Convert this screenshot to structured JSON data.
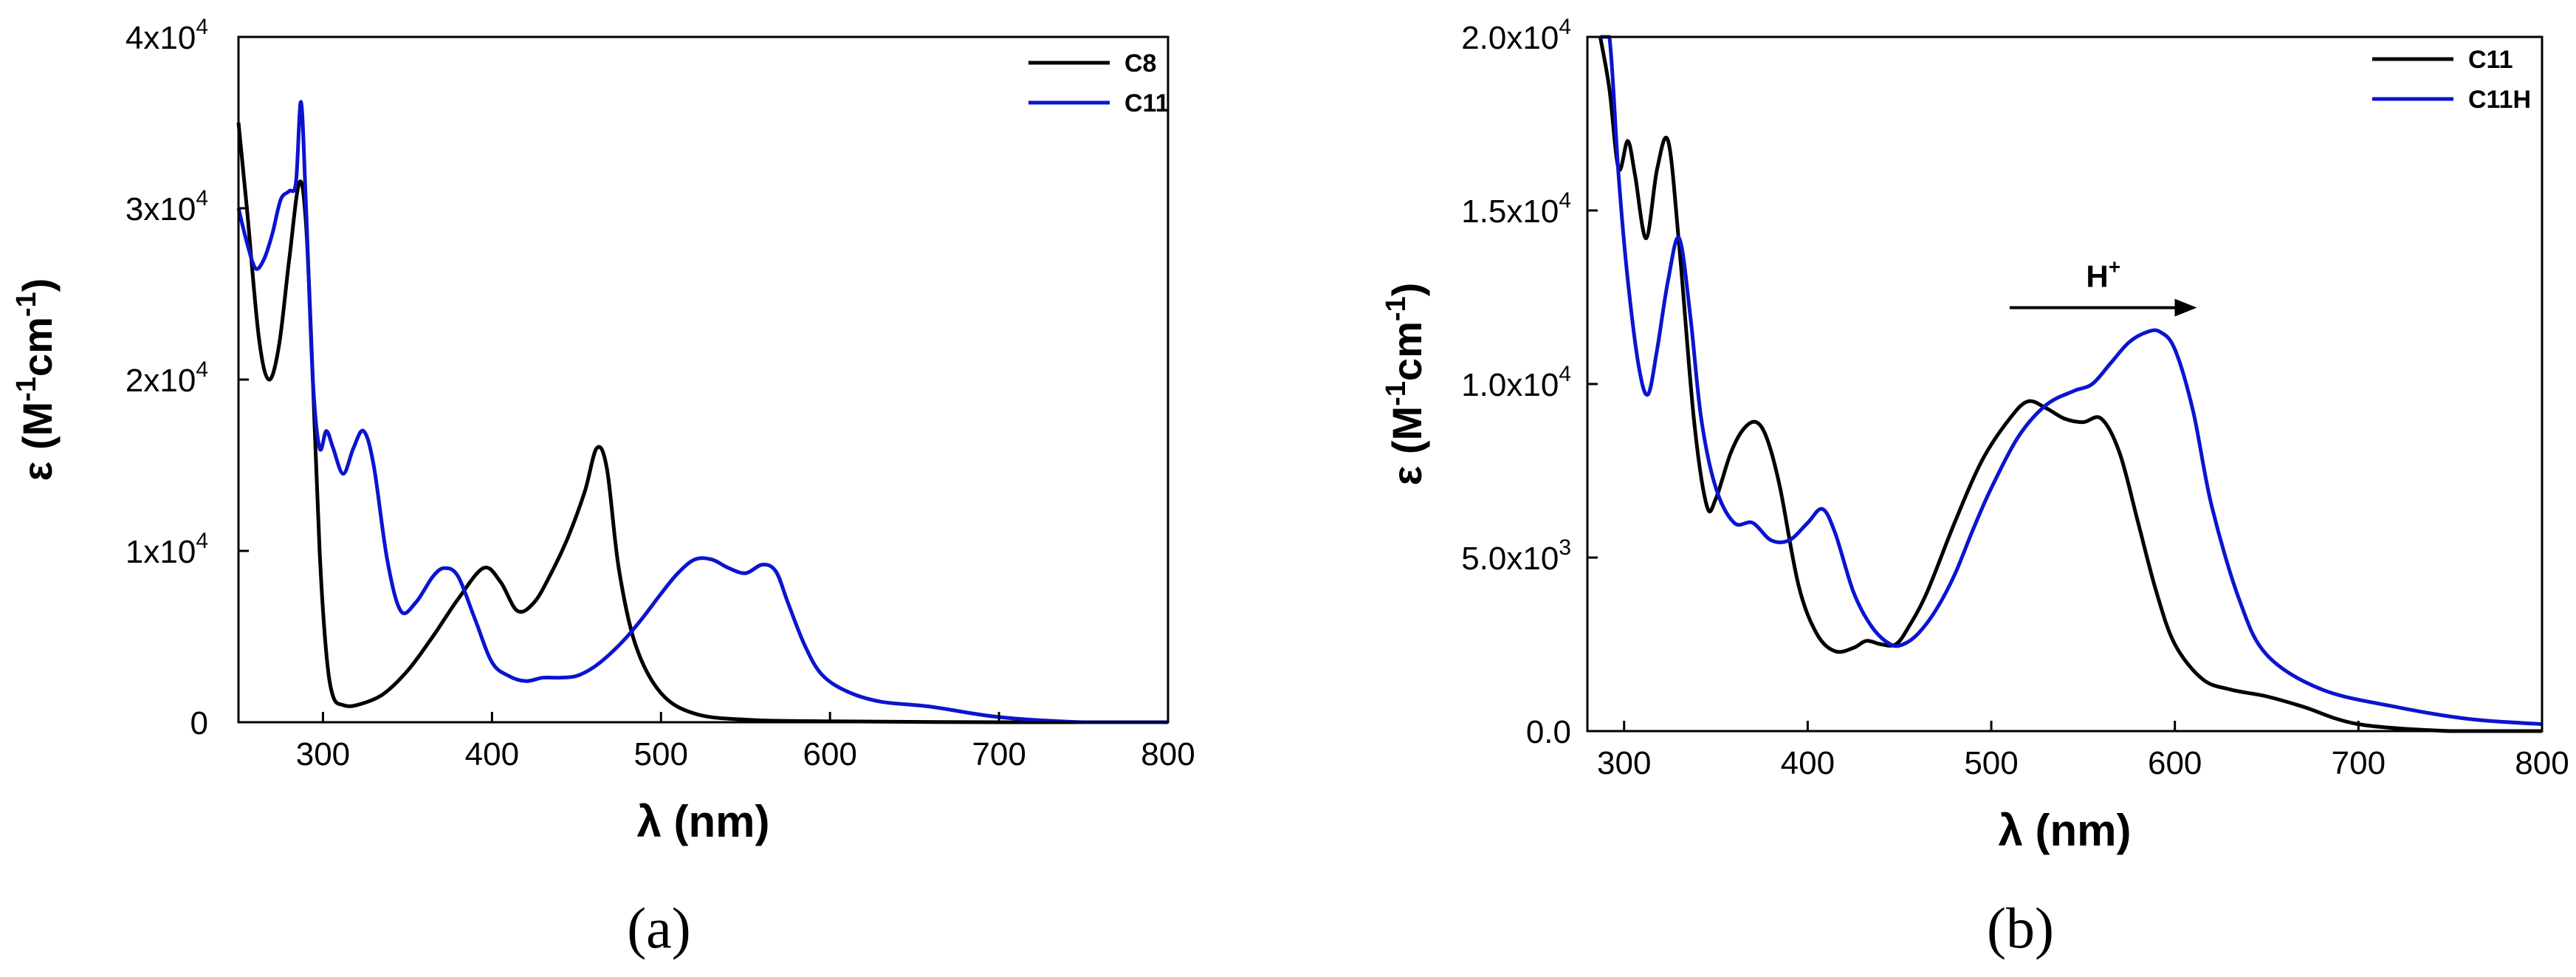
{
  "chart_data": [
    {
      "type": "line",
      "panel_label": "(a)",
      "xlabel": "λ (nm)",
      "ylabel": "ε (M⁻¹cm⁻¹)",
      "xlim": [
        250,
        800
      ],
      "ylim": [
        0,
        40000
      ],
      "x_ticks": [
        300,
        400,
        500,
        600,
        700,
        800
      ],
      "x_tick_labels": [
        "300",
        "400",
        "500",
        "600",
        "700",
        "800"
      ],
      "y_ticks": [
        0,
        10000,
        20000,
        30000,
        40000
      ],
      "y_tick_labels": [
        {
          "base": "0",
          "exp": ""
        },
        {
          "base": "1x10",
          "exp": "4"
        },
        {
          "base": "2x10",
          "exp": "4"
        },
        {
          "base": "3x10",
          "exp": "4"
        },
        {
          "base": "4x10",
          "exp": "4"
        }
      ],
      "legend_position": "top-right",
      "series": [
        {
          "name": "C8",
          "color": "#000000",
          "x": [
            250,
            255,
            262,
            268,
            274,
            280,
            286,
            290,
            294,
            298,
            302,
            306,
            312,
            320,
            335,
            350,
            365,
            380,
            395,
            405,
            415,
            425,
            435,
            445,
            455,
            462,
            468,
            475,
            485,
            500,
            520,
            550,
            600,
            700,
            800
          ],
          "y": [
            35000,
            30000,
            22500,
            20000,
            22000,
            27000,
            31500,
            29000,
            20000,
            10000,
            4000,
            1500,
            1000,
            1000,
            1600,
            3000,
            5000,
            7200,
            9000,
            8200,
            6500,
            7000,
            8700,
            10800,
            13500,
            16000,
            14800,
            9000,
            4500,
            1700,
            500,
            150,
            50,
            0,
            0
          ]
        },
        {
          "name": "C11",
          "color": "#0b14ce",
          "x": [
            250,
            255,
            260,
            265,
            270,
            275,
            280,
            284,
            287,
            290,
            294,
            298,
            302,
            306,
            312,
            318,
            324,
            330,
            338,
            346,
            355,
            365,
            372,
            380,
            390,
            400,
            410,
            420,
            430,
            440,
            450,
            460,
            470,
            480,
            490,
            500,
            510,
            520,
            530,
            540,
            550,
            560,
            568,
            575,
            585,
            595,
            610,
            630,
            660,
            700,
            750,
            800
          ],
          "y": [
            30000,
            28000,
            26500,
            27000,
            28500,
            30500,
            31000,
            31500,
            36200,
            30000,
            20000,
            16000,
            17000,
            16000,
            14500,
            16000,
            17000,
            15000,
            9500,
            6500,
            7000,
            8500,
            9000,
            8500,
            6000,
            3500,
            2700,
            2400,
            2600,
            2600,
            2700,
            3200,
            4000,
            5000,
            6200,
            7500,
            8700,
            9500,
            9500,
            9000,
            8700,
            9200,
            8800,
            7000,
            4500,
            2800,
            1800,
            1200,
            900,
            300,
            0,
            0
          ]
        }
      ]
    },
    {
      "type": "line",
      "panel_label": "(b)",
      "xlabel": "λ (nm)",
      "ylabel": "ε (M⁻¹cm⁻¹)",
      "xlim": [
        280,
        800
      ],
      "ylim": [
        0,
        20000
      ],
      "x_ticks": [
        300,
        400,
        500,
        600,
        700,
        800
      ],
      "x_tick_labels": [
        "300",
        "400",
        "500",
        "600",
        "700",
        "800"
      ],
      "y_ticks": [
        0,
        5000,
        10000,
        15000,
        20000
      ],
      "y_tick_labels": [
        {
          "base": "0.0",
          "exp": ""
        },
        {
          "base": "5.0x10",
          "exp": "3"
        },
        {
          "base": "1.0x10",
          "exp": "4"
        },
        {
          "base": "1.5x10",
          "exp": "4"
        },
        {
          "base": "2.0x10",
          "exp": "4"
        }
      ],
      "legend_position": "top-right",
      "annotation": {
        "text": "H",
        "superscript": "+",
        "arrow_from_x": 510,
        "arrow_to_x": 612,
        "arrow_y": 12200
      },
      "series": [
        {
          "name": "C11",
          "color": "#000000",
          "x": [
            287,
            292,
            297,
            302,
            306,
            312,
            318,
            324,
            330,
            338,
            345,
            350,
            358,
            365,
            372,
            378,
            385,
            395,
            405,
            415,
            425,
            432,
            440,
            448,
            455,
            465,
            480,
            495,
            510,
            520,
            530,
            540,
            550,
            560,
            570,
            580,
            590,
            600,
            615,
            630,
            650,
            670,
            700,
            750,
            800
          ],
          "y": [
            20500,
            18500,
            16200,
            17000,
            16000,
            14200,
            16200,
            17000,
            14000,
            9000,
            6500,
            6700,
            8000,
            8700,
            8900,
            8400,
            7000,
            4200,
            2800,
            2300,
            2400,
            2600,
            2500,
            2500,
            3000,
            4000,
            6000,
            7800,
            9000,
            9500,
            9300,
            9000,
            8900,
            9000,
            8000,
            6000,
            4000,
            2500,
            1500,
            1200,
            1000,
            700,
            200,
            0,
            0
          ]
        },
        {
          "name": "C11H",
          "color": "#0b14ce",
          "x": [
            287,
            292,
            297,
            302,
            308,
            313,
            318,
            324,
            330,
            336,
            342,
            350,
            360,
            370,
            380,
            390,
            400,
            408,
            415,
            425,
            435,
            445,
            452,
            460,
            470,
            480,
            490,
            500,
            515,
            530,
            545,
            555,
            565,
            575,
            585,
            592,
            600,
            610,
            620,
            635,
            650,
            680,
            720,
            760,
            800
          ],
          "y": [
            20500,
            20000,
            16000,
            13000,
            10500,
            9700,
            11000,
            13000,
            14200,
            12000,
            9000,
            7000,
            6000,
            6000,
            5500,
            5500,
            6000,
            6400,
            5700,
            4000,
            3000,
            2500,
            2500,
            2800,
            3500,
            4500,
            5800,
            7000,
            8500,
            9400,
            9800,
            10000,
            10600,
            11200,
            11500,
            11500,
            11000,
            9200,
            6500,
            3800,
            2200,
            1200,
            700,
            350,
            200
          ]
        }
      ]
    }
  ]
}
